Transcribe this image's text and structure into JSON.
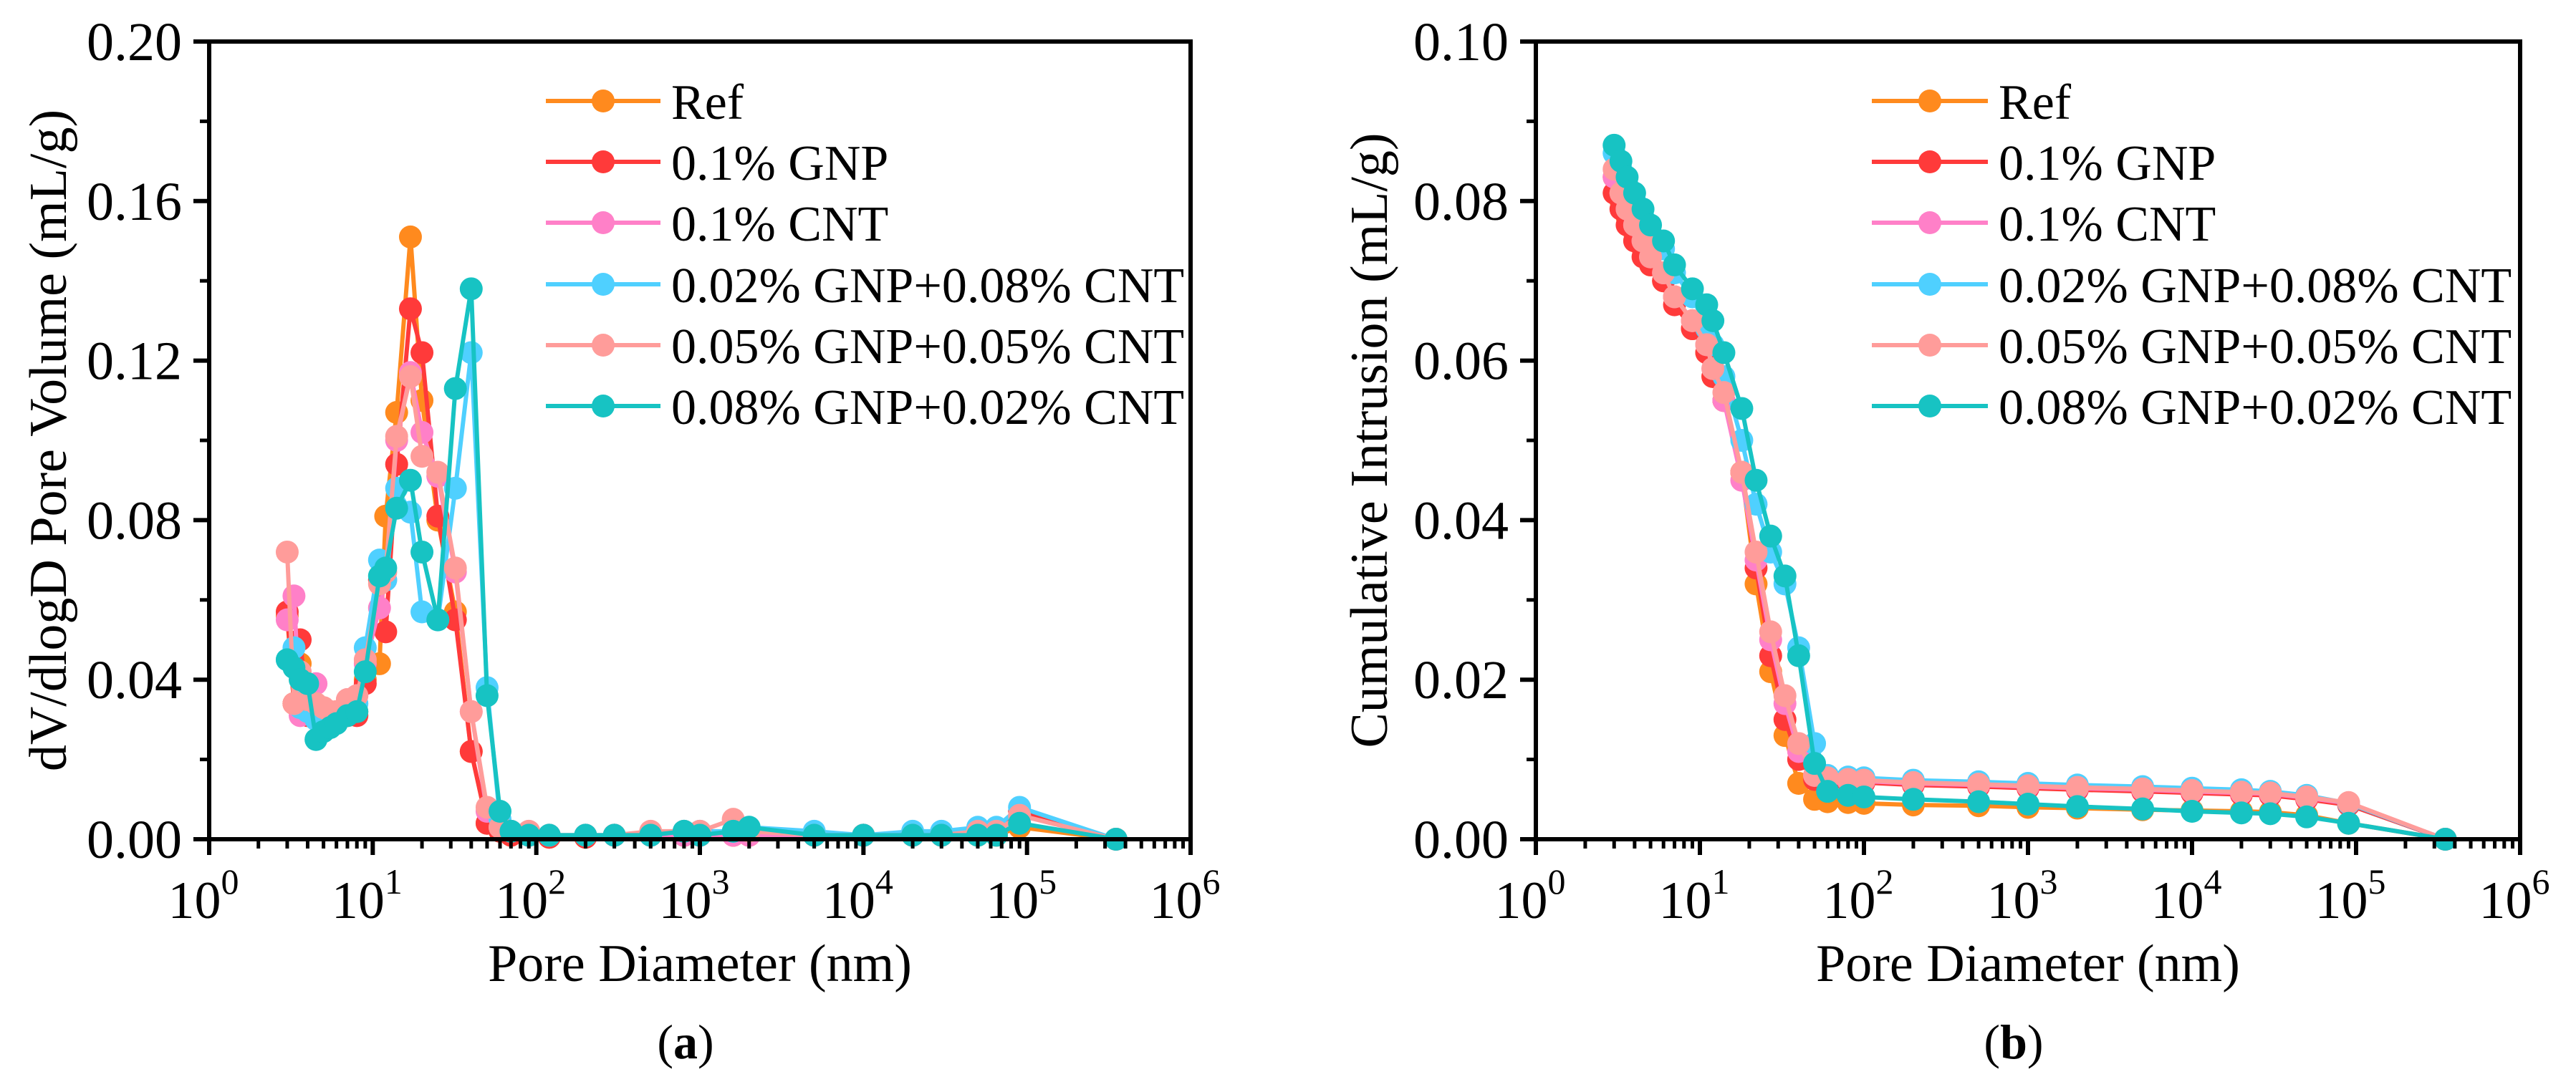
{
  "colors": {
    "Ref": "#ff8a1e",
    "0.1% GNP": "#ff3a3a",
    "0.1% CNT": "#ff80c8",
    "0.02% GNP+0.08% CNT": "#4fd0ff",
    "0.05% GNP+0.05% CNT": "#ff9c9a",
    "0.08% GNP+0.02% CNT": "#17c3c3"
  },
  "chart_data": [
    {
      "type": "line",
      "panel_label": "a",
      "xlabel": "Pore Diameter (nm)",
      "ylabel": "dV/dlogD Pore Volume (mL/g)",
      "xscale": "log",
      "xlim": [
        1,
        1000000
      ],
      "ylim": [
        0,
        0.2
      ],
      "xticks": [
        {
          "base": "10",
          "exp": "0"
        },
        {
          "base": "10",
          "exp": "1"
        },
        {
          "base": "10",
          "exp": "2"
        },
        {
          "base": "10",
          "exp": "3"
        },
        {
          "base": "10",
          "exp": "4"
        },
        {
          "base": "10",
          "exp": "5"
        },
        {
          "base": "10",
          "exp": "6"
        }
      ],
      "yticks": [
        "0.00",
        "0.04",
        "0.08",
        "0.12",
        "0.16",
        "0.20"
      ],
      "legend_position": "top-right",
      "x": [
        3,
        3.3,
        3.6,
        4,
        4.5,
        5,
        5.5,
        6,
        7,
        8,
        9,
        11,
        12,
        14,
        17,
        20,
        25,
        32,
        40,
        50,
        60,
        70,
        90,
        120,
        200,
        300,
        500,
        800,
        1000,
        1600,
        2000,
        5000,
        10000,
        20000,
        30000,
        50000,
        65000,
        90000,
        350000
      ],
      "series": [
        {
          "name": "Ref",
          "values": [
            0.056,
            0.034,
            0.044,
            0.033,
            0.032,
            0.031,
            0.031,
            0.03,
            0.031,
            0.032,
            0.04,
            0.044,
            0.081,
            0.107,
            0.151,
            0.11,
            0.08,
            0.057,
            0.022,
            0.004,
            0.002,
            0.001,
            0.001,
            0.0005,
            0.0005,
            0.001,
            0.001,
            0.001,
            0.001,
            0.001,
            0.001,
            0.001,
            0.001,
            0.001,
            0.001,
            0.001,
            0.001,
            0.003,
            0
          ]
        },
        {
          "name": "0.1% GNP",
          "values": [
            0.057,
            0.034,
            0.05,
            0.031,
            0.031,
            0.031,
            0.03,
            0.03,
            0.031,
            0.031,
            0.039,
            0.065,
            0.052,
            0.094,
            0.133,
            0.122,
            0.081,
            0.055,
            0.022,
            0.004,
            0.002,
            0.001,
            0.001,
            0.0005,
            0.0005,
            0.001,
            0.001,
            0.001,
            0.001,
            0.001,
            0.001,
            0.001,
            0.001,
            0.001,
            0.001,
            0.002,
            0.002,
            0.007,
            0
          ]
        },
        {
          "name": "0.1% CNT",
          "values": [
            0.055,
            0.061,
            0.031,
            0.033,
            0.039,
            0.032,
            0.031,
            0.031,
            0.035,
            0.036,
            0.044,
            0.058,
            0.065,
            0.1,
            0.117,
            0.102,
            0.091,
            0.067,
            0.032,
            0.007,
            0.003,
            0.002,
            0.001,
            0.001,
            0.001,
            0.001,
            0.001,
            0.001,
            0.001,
            0.001,
            0.001,
            0.001,
            0.001,
            0.001,
            0.001,
            0.002,
            0.002,
            0.006,
            0
          ]
        },
        {
          "name": "0.02% GNP+0.08% CNT",
          "values": [
            0.045,
            0.048,
            0.033,
            0.032,
            0.03,
            0.028,
            0.029,
            0.03,
            0.033,
            0.034,
            0.048,
            0.07,
            0.065,
            0.088,
            0.082,
            0.057,
            0.055,
            0.088,
            0.122,
            0.038,
            0.005,
            0.002,
            0.001,
            0.001,
            0.001,
            0.001,
            0.001,
            0.002,
            0.002,
            0.002,
            0.003,
            0.002,
            0.001,
            0.002,
            0.002,
            0.003,
            0.003,
            0.008,
            0
          ]
        },
        {
          "name": "0.05% GNP+0.05% CNT",
          "values": [
            0.072,
            0.034,
            0.042,
            0.035,
            0.034,
            0.033,
            0.032,
            0.032,
            0.035,
            0.036,
            0.045,
            0.064,
            0.067,
            0.101,
            0.116,
            0.096,
            0.092,
            0.068,
            0.032,
            0.008,
            0.003,
            0.002,
            0.002,
            0.001,
            0.001,
            0.001,
            0.002,
            0.002,
            0.002,
            0.005,
            0.002,
            0.001,
            0.001,
            0.001,
            0.001,
            0.002,
            0.002,
            0.006,
            0
          ]
        },
        {
          "name": "0.08% GNP+0.02% CNT",
          "values": [
            0.045,
            0.043,
            0.04,
            0.039,
            0.025,
            0.027,
            0.028,
            0.029,
            0.031,
            0.032,
            0.042,
            0.066,
            0.068,
            0.083,
            0.09,
            0.072,
            0.055,
            0.113,
            0.138,
            0.036,
            0.007,
            0.002,
            0.001,
            0.001,
            0.001,
            0.001,
            0.001,
            0.002,
            0.001,
            0.002,
            0.003,
            0.001,
            0.001,
            0.001,
            0.001,
            0.001,
            0.001,
            0.004,
            0
          ]
        }
      ]
    },
    {
      "type": "line",
      "panel_label": "b",
      "xlabel": "Pore Diameter (nm)",
      "ylabel": "Cumulative Intrusion (mL/g)",
      "xscale": "log",
      "xlim": [
        1,
        1000000
      ],
      "ylim": [
        0,
        0.1
      ],
      "xticks": [
        {
          "base": "10",
          "exp": "0"
        },
        {
          "base": "10",
          "exp": "1"
        },
        {
          "base": "10",
          "exp": "2"
        },
        {
          "base": "10",
          "exp": "3"
        },
        {
          "base": "10",
          "exp": "4"
        },
        {
          "base": "10",
          "exp": "5"
        },
        {
          "base": "10",
          "exp": "6"
        }
      ],
      "yticks": [
        "0.00",
        "0.02",
        "0.04",
        "0.06",
        "0.08",
        "0.10"
      ],
      "legend_position": "top-right",
      "x": [
        3,
        3.3,
        3.6,
        4,
        4.5,
        5,
        6,
        7,
        9,
        11,
        12,
        14,
        18,
        22,
        27,
        33,
        40,
        50,
        60,
        80,
        100,
        200,
        500,
        1000,
        2000,
        5000,
        10000,
        20000,
        30000,
        50000,
        90000,
        350000
      ],
      "series": [
        {
          "name": "Ref",
          "values": [
            0.083,
            0.08,
            0.078,
            0.076,
            0.074,
            0.072,
            0.07,
            0.068,
            0.064,
            0.061,
            0.058,
            0.055,
            0.046,
            0.032,
            0.021,
            0.013,
            0.007,
            0.005,
            0.0047,
            0.0046,
            0.0045,
            0.0043,
            0.0042,
            0.004,
            0.0039,
            0.0037,
            0.0036,
            0.0035,
            0.0034,
            0.003,
            0.002,
            0
          ]
        },
        {
          "name": "0.1% GNP",
          "values": [
            0.081,
            0.079,
            0.077,
            0.075,
            0.073,
            0.072,
            0.07,
            0.067,
            0.064,
            0.061,
            0.058,
            0.055,
            0.046,
            0.034,
            0.023,
            0.015,
            0.01,
            0.0075,
            0.0073,
            0.0072,
            0.0071,
            0.0068,
            0.0066,
            0.0064,
            0.0062,
            0.006,
            0.0058,
            0.0056,
            0.0055,
            0.005,
            0.0043,
            0
          ]
        },
        {
          "name": "0.1% CNT",
          "values": [
            0.083,
            0.081,
            0.079,
            0.077,
            0.075,
            0.073,
            0.071,
            0.068,
            0.065,
            0.062,
            0.059,
            0.055,
            0.045,
            0.035,
            0.025,
            0.017,
            0.011,
            0.008,
            0.0076,
            0.0074,
            0.0073,
            0.007,
            0.0068,
            0.0066,
            0.0064,
            0.0062,
            0.006,
            0.0058,
            0.0057,
            0.0052,
            0.0045,
            0
          ]
        },
        {
          "name": "0.02% GNP+0.08% CNT",
          "values": [
            0.086,
            0.084,
            0.082,
            0.08,
            0.078,
            0.076,
            0.074,
            0.071,
            0.068,
            0.064,
            0.062,
            0.058,
            0.05,
            0.042,
            0.036,
            0.032,
            0.024,
            0.012,
            0.008,
            0.0078,
            0.0077,
            0.0074,
            0.0072,
            0.007,
            0.0068,
            0.0066,
            0.0064,
            0.0062,
            0.006,
            0.0055,
            0.0045,
            0
          ]
        },
        {
          "name": "0.05% GNP+0.05% CNT",
          "values": [
            0.084,
            0.081,
            0.079,
            0.077,
            0.075,
            0.073,
            0.071,
            0.068,
            0.065,
            0.062,
            0.059,
            0.056,
            0.046,
            0.036,
            0.026,
            0.018,
            0.012,
            0.008,
            0.0077,
            0.0075,
            0.0074,
            0.0071,
            0.0069,
            0.0067,
            0.0065,
            0.0063,
            0.0061,
            0.0059,
            0.0058,
            0.0053,
            0.0046,
            0
          ]
        },
        {
          "name": "0.08% GNP+0.02% CNT",
          "values": [
            0.087,
            0.085,
            0.083,
            0.081,
            0.079,
            0.077,
            0.075,
            0.072,
            0.069,
            0.067,
            0.065,
            0.061,
            0.054,
            0.045,
            0.038,
            0.033,
            0.023,
            0.0095,
            0.006,
            0.0055,
            0.0053,
            0.005,
            0.0047,
            0.0044,
            0.0041,
            0.0038,
            0.0035,
            0.0033,
            0.0032,
            0.0028,
            0.002,
            0
          ]
        }
      ]
    }
  ]
}
